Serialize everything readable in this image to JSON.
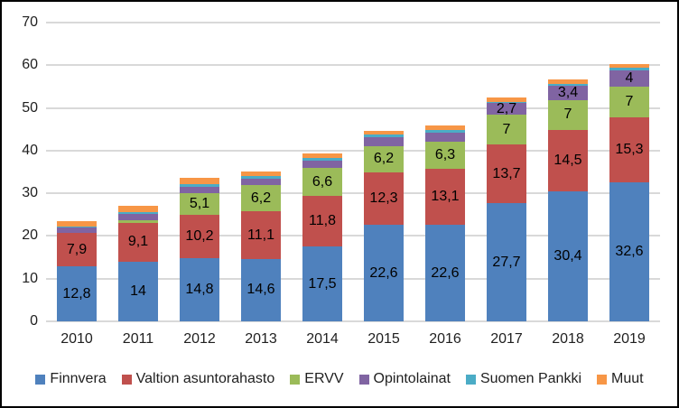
{
  "chart_data": {
    "type": "bar",
    "stacked": true,
    "title": "",
    "xlabel": "",
    "ylabel": "",
    "categories": [
      "2010",
      "2011",
      "2012",
      "2013",
      "2014",
      "2015",
      "2016",
      "2017",
      "2018",
      "2019"
    ],
    "series": [
      {
        "name": "Finnvera",
        "color": "#4F81BD",
        "values": [
          12.8,
          14,
          14.8,
          14.6,
          17.5,
          22.6,
          22.6,
          27.7,
          30.4,
          32.6
        ],
        "labels": [
          "12,8",
          "14",
          "14,8",
          "14,6",
          "17,5",
          "22,6",
          "22,6",
          "27,7",
          "30,4",
          "32,6"
        ]
      },
      {
        "name": "Valtion asuntorahasto",
        "color": "#C0504D",
        "values": [
          7.9,
          9.1,
          10.2,
          11.1,
          11.8,
          12.3,
          13.1,
          13.7,
          14.5,
          15.3
        ],
        "labels": [
          "7,9",
          "9,1",
          "10,2",
          "11,1",
          "11,8",
          "12,3",
          "13,1",
          "13,7",
          "14,5",
          "15,3"
        ]
      },
      {
        "name": "ERVV",
        "color": "#9BBB59",
        "values": [
          0,
          0.5,
          5.1,
          6.2,
          6.6,
          6.2,
          6.3,
          7,
          7,
          7
        ],
        "labels": [
          "",
          "",
          "5,1",
          "6,2",
          "6,6",
          "6,2",
          "6,3",
          "7",
          "7",
          "7"
        ]
      },
      {
        "name": "Opintolainat",
        "color": "#8064A2",
        "values": [
          1.4,
          1.5,
          1.5,
          1.6,
          1.8,
          2.0,
          2.3,
          2.7,
          3.4,
          4
        ],
        "labels": [
          "",
          "",
          "",
          "",
          "",
          "",
          "",
          "2,7",
          "3,4",
          "4"
        ]
      },
      {
        "name": "Suomen Pankki",
        "color": "#4BACC6",
        "values": [
          0.2,
          0.6,
          0.6,
          0.6,
          0.6,
          0.6,
          0.5,
          0.4,
          0.4,
          0.6
        ],
        "labels": [
          "",
          "",
          "",
          "",
          "",
          "",
          "",
          "",
          "",
          ""
        ]
      },
      {
        "name": "Muut",
        "color": "#F79646",
        "values": [
          1.1,
          1.3,
          1.4,
          1.0,
          1.0,
          1.0,
          1.1,
          0.9,
          0.9,
          0.8
        ],
        "labels": [
          "",
          "",
          "",
          "",
          "",
          "",
          "",
          "",
          "",
          ""
        ]
      }
    ],
    "y_axis": {
      "min": 0,
      "max": 70,
      "step": 10,
      "tick_labels": [
        "0",
        "10",
        "20",
        "30",
        "40",
        "50",
        "60",
        "70"
      ]
    },
    "grid": true,
    "gridline_color": "#D9D9D9",
    "label_color": "#000000",
    "legend_position": "bottom"
  }
}
